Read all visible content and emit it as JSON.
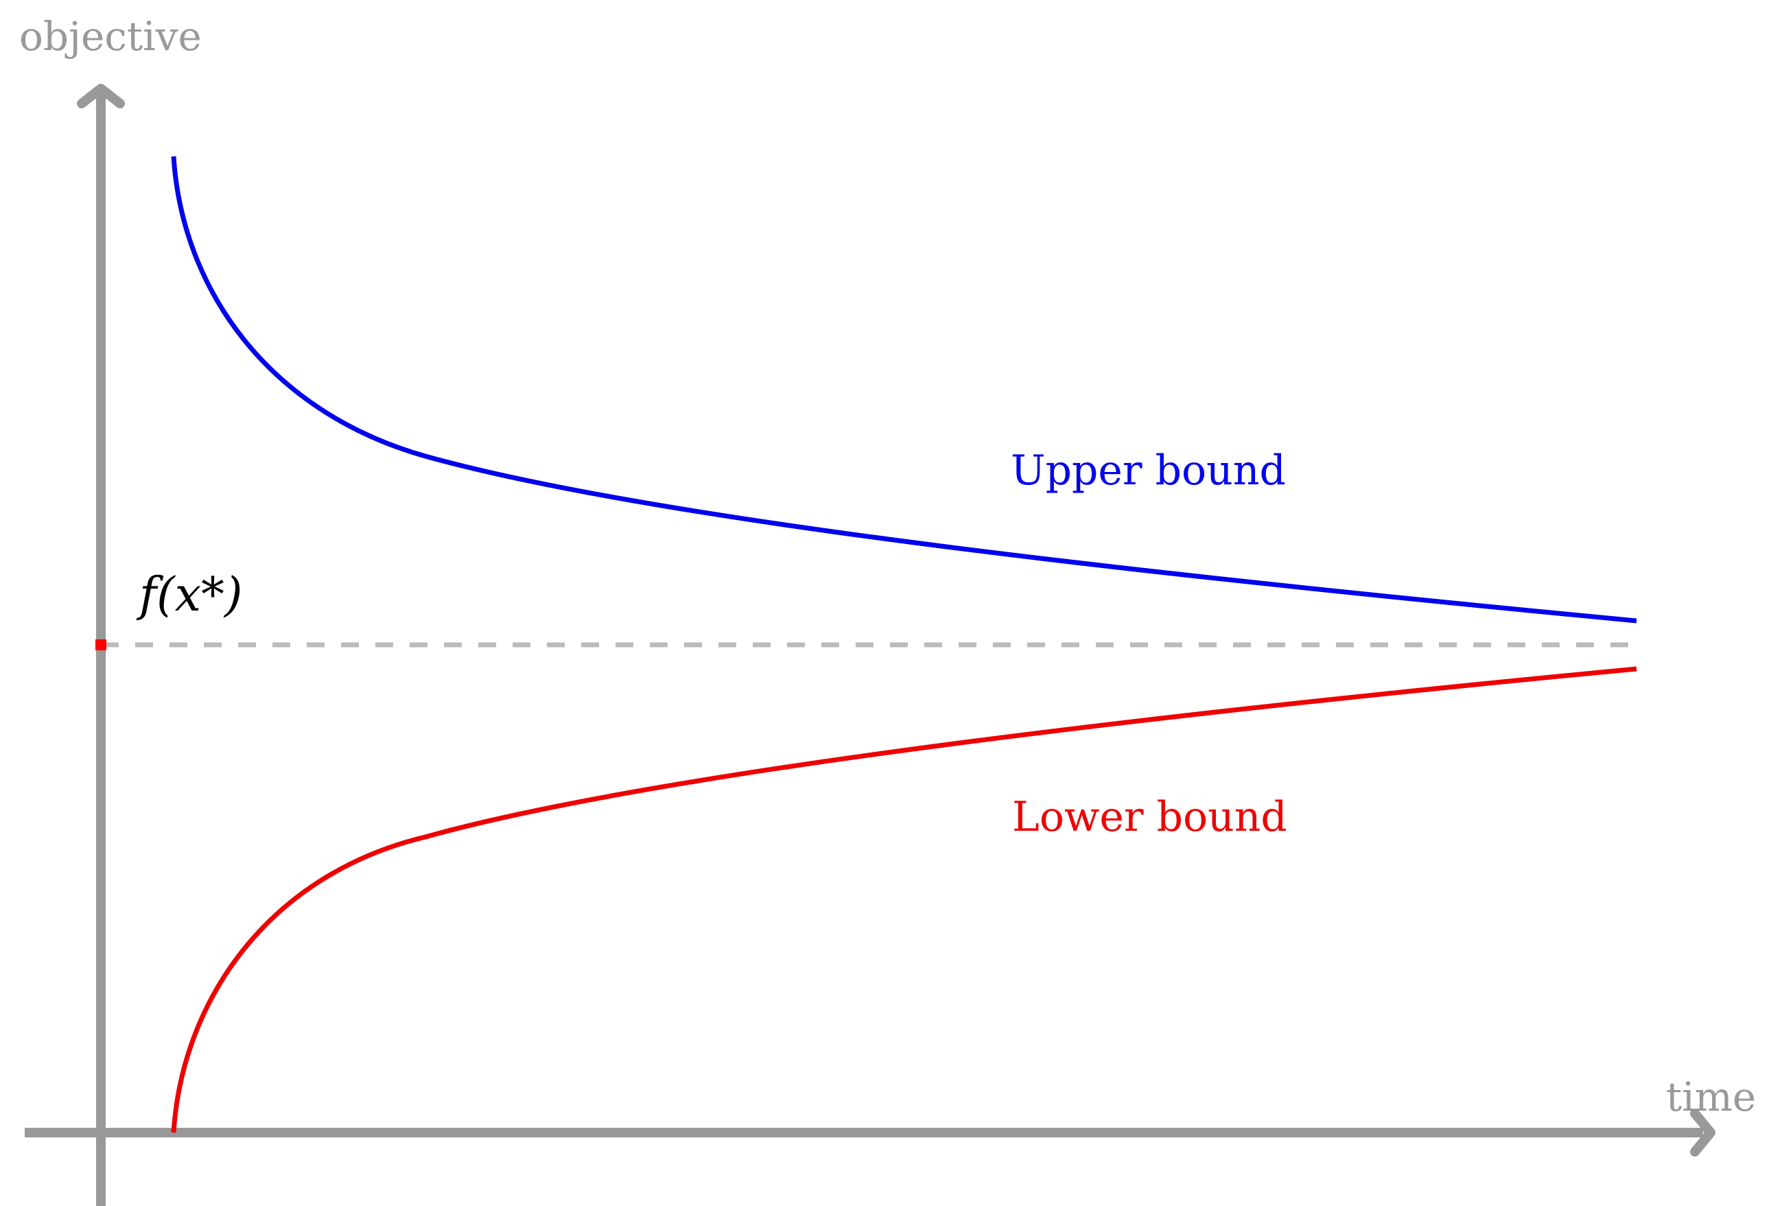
{
  "axes": {
    "y_label": "objective",
    "x_label": "time",
    "color": "#999999"
  },
  "optimum": {
    "label": "f(x*)",
    "line_color": "#bbbbbb",
    "marker_color": "#ff0000"
  },
  "upper": {
    "label": "Upper bound",
    "color": "#0000ee"
  },
  "lower": {
    "label": "Lower bound",
    "color": "#ee0000"
  }
}
